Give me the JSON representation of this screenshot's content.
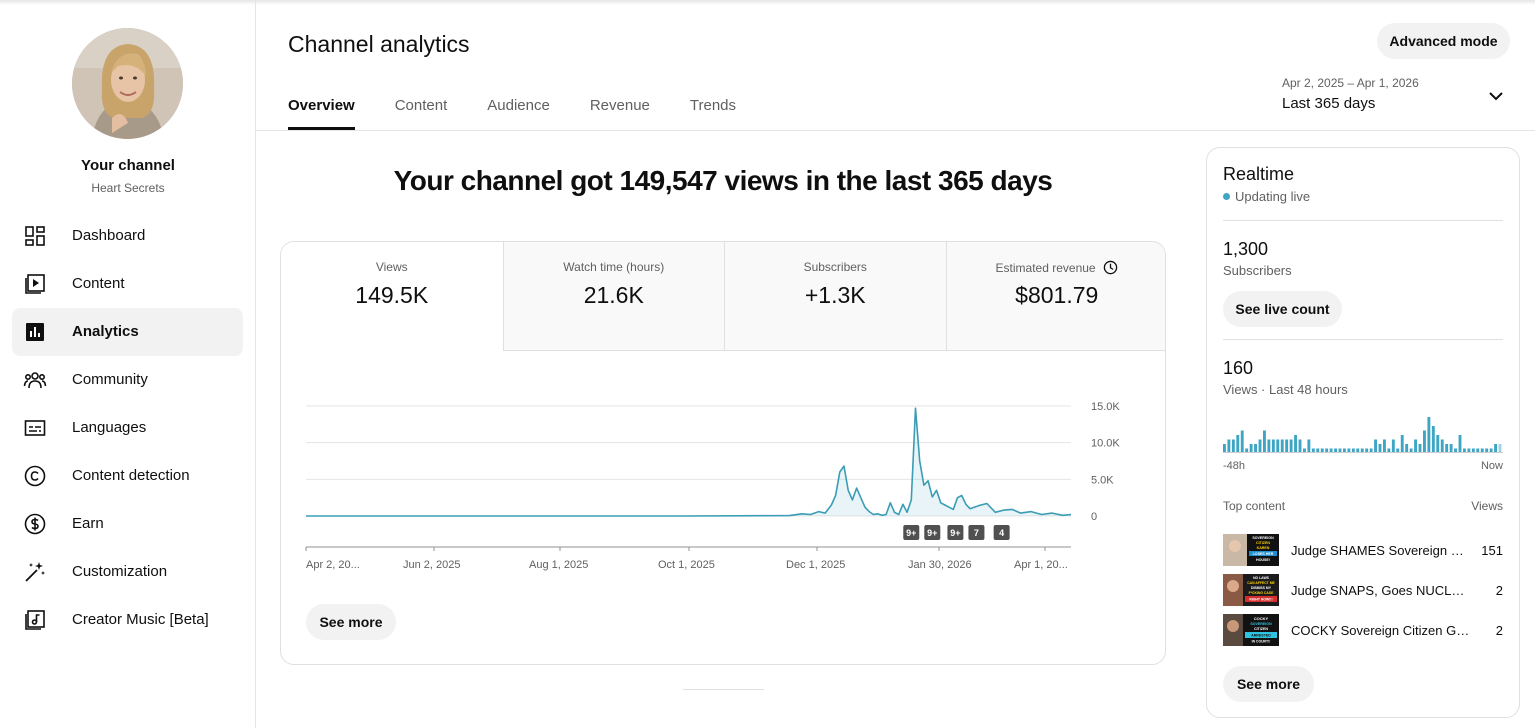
{
  "sidebar": {
    "channel_name": "Your channel",
    "channel_handle": "Heart Secrets",
    "items": [
      {
        "label": "Dashboard",
        "icon": "dashboard-icon"
      },
      {
        "label": "Content",
        "icon": "content-icon"
      },
      {
        "label": "Analytics",
        "icon": "analytics-icon",
        "active": true
      },
      {
        "label": "Community",
        "icon": "community-icon"
      },
      {
        "label": "Languages",
        "icon": "subtitles-icon"
      },
      {
        "label": "Content detection",
        "icon": "copyright-icon"
      },
      {
        "label": "Earn",
        "icon": "dollar-icon"
      },
      {
        "label": "Customization",
        "icon": "magic-wand-icon"
      },
      {
        "label": "Creator Music [Beta]",
        "icon": "music-icon"
      }
    ]
  },
  "header": {
    "title": "Channel analytics",
    "advanced_mode": "Advanced mode",
    "tabs": [
      "Overview",
      "Content",
      "Audience",
      "Revenue",
      "Trends"
    ],
    "date_range": "Apr 2, 2025 – Apr 1, 2026",
    "date_label": "Last 365 days"
  },
  "headline": "Your channel got 149,547 views in the last 365 days",
  "metrics": [
    {
      "label": "Views",
      "value": "149.5K"
    },
    {
      "label": "Watch time (hours)",
      "value": "21.6K"
    },
    {
      "label": "Subscribers",
      "value": "+1.3K"
    },
    {
      "label": "Estimated revenue",
      "value": "$801.79"
    }
  ],
  "see_more": "See more",
  "colors": {
    "accent": "#3ea6c4",
    "line": "#3a9db5"
  },
  "chart_data": {
    "type": "line",
    "x_tick_labels": [
      "Apr 2, 20...",
      "Jun 2, 2025",
      "Aug 1, 2025",
      "Oct 1, 2025",
      "Dec 1, 2025",
      "Jan 30, 2026",
      "Apr 1, 20..."
    ],
    "y_tick_labels": [
      "15.0K",
      "10.0K",
      "5.0K",
      "0"
    ],
    "ylim": [
      0,
      15000
    ],
    "grid": true,
    "series": [
      {
        "x_days": [
          0,
          60,
          120,
          180,
          230,
          236,
          240,
          244,
          247,
          250,
          252,
          254,
          256,
          258,
          260,
          262,
          264,
          266,
          268,
          270,
          272,
          274,
          276,
          278,
          280,
          282,
          284,
          286,
          288,
          290,
          292,
          294,
          296,
          298,
          300,
          302,
          304,
          306,
          308,
          310,
          312,
          314,
          316,
          320,
          324,
          328,
          332,
          336,
          340,
          345,
          350,
          355,
          360,
          364
        ],
        "values": [
          0,
          0,
          0,
          0,
          50,
          300,
          200,
          600,
          400,
          1500,
          2800,
          6000,
          6800,
          3500,
          2200,
          3800,
          2500,
          1200,
          600,
          200,
          300,
          100,
          200,
          1800,
          500,
          200,
          1600,
          500,
          2200,
          14700,
          7500,
          4200,
          4800,
          2600,
          3500,
          1800,
          1500,
          1200,
          900,
          2500,
          2800,
          1600,
          1000,
          1400,
          1700,
          500,
          800,
          900,
          400,
          600,
          200,
          400,
          100,
          200
        ]
      }
    ],
    "markers": [
      {
        "day": 288,
        "label": "9+"
      },
      {
        "day": 298,
        "label": "9+"
      },
      {
        "day": 309,
        "label": "9+"
      },
      {
        "day": 319,
        "label": "7"
      },
      {
        "day": 331,
        "label": "4"
      }
    ]
  },
  "realtime": {
    "title": "Realtime",
    "status": "Updating live",
    "subscribers_value": "1,300",
    "subscribers_label": "Subscribers",
    "see_live_count": "See live count",
    "views_value": "160",
    "views_label": "Views · Last 48 hours",
    "hourly_views": [
      2,
      3,
      3,
      4,
      5,
      1,
      2,
      2,
      3,
      5,
      3,
      3,
      3,
      3,
      3,
      3,
      4,
      3,
      1,
      3,
      1,
      1,
      1,
      1,
      1,
      1,
      1,
      1,
      1,
      1,
      1,
      1,
      1,
      1,
      3,
      2,
      3,
      1,
      3,
      1,
      4,
      2,
      1,
      3,
      2,
      5,
      8,
      6,
      4,
      3,
      2,
      2,
      1,
      4,
      1,
      1,
      1,
      1,
      1,
      1,
      1,
      2,
      2
    ],
    "axis_start": "-48h",
    "axis_end": "Now",
    "top_content_label": "Top content",
    "views_col_label": "Views",
    "top_content": [
      {
        "title": "Judge SHAMES Sovereign Citizen Karen",
        "views": "151",
        "thumb_text": "SOVEREIGN CITIZEN KAREN LOSES HER HOUSE!"
      },
      {
        "title": "Judge SNAPS, Goes NUCLEAR on Sovereign",
        "views": "2",
        "thumb_text": "NO LAWS CAN AFFECT ME DISMISS MY F*CKING CASE RIGHT NOW!!!"
      },
      {
        "title": "COCKY Sovereign Citizen Gets Arrested",
        "views": "2",
        "thumb_text": "COCKY SOVEREIGN CITIZEN ARRESTED IN COURT!!"
      }
    ],
    "see_more": "See more"
  }
}
